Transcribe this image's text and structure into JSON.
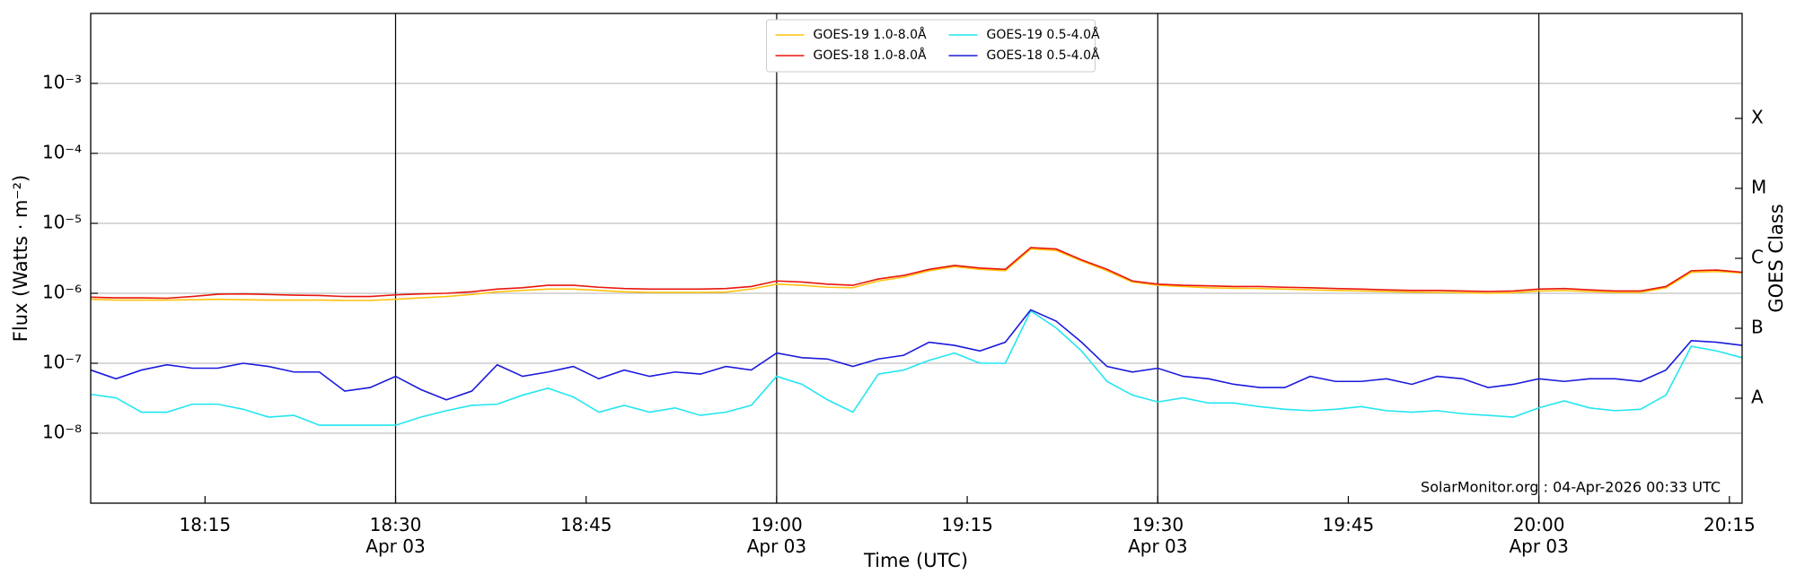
{
  "chart_data": {
    "type": "line",
    "log_y": true,
    "xlabel": "Time (UTC)",
    "ylabel": "Flux (Watts · m⁻²)",
    "y2label": "GOES Class",
    "annotation": "SolarMonitor.org : 04-Apr-2026 00:33 UTC",
    "legend": "upper center",
    "ygrid": true,
    "xlim": [
      "18:06",
      "20:16"
    ],
    "xticks": [
      {
        "value": "18:15",
        "label": "18:15"
      },
      {
        "value": "18:30",
        "label": "18:30",
        "date": "Apr 03"
      },
      {
        "value": "18:45",
        "label": "18:45"
      },
      {
        "value": "19:00",
        "label": "19:00",
        "date": "Apr 03"
      },
      {
        "value": "19:15",
        "label": "19:15"
      },
      {
        "value": "19:30",
        "label": "19:30",
        "date": "Apr 03"
      },
      {
        "value": "19:45",
        "label": "19:45"
      },
      {
        "value": "20:00",
        "label": "20:00",
        "date": "Apr 03"
      },
      {
        "value": "20:15",
        "label": "20:15"
      }
    ],
    "ylim": [
      1e-09,
      0.01
    ],
    "yticks": [
      {
        "value": 1e-08,
        "label": "10⁻⁸"
      },
      {
        "value": 1e-07,
        "label": "10⁻⁷"
      },
      {
        "value": 1e-06,
        "label": "10⁻⁶"
      },
      {
        "value": 1e-05,
        "label": "10⁻⁵"
      },
      {
        "value": 0.0001,
        "label": "10⁻⁴"
      },
      {
        "value": 0.001,
        "label": "10⁻³"
      }
    ],
    "y2lim": [
      1e-09,
      0.01
    ],
    "y2ticks": [
      {
        "value": 3.16e-08,
        "label": "A"
      },
      {
        "value": 3.16e-07,
        "label": "B"
      },
      {
        "value": 3.16e-06,
        "label": "C"
      },
      {
        "value": 3.16e-05,
        "label": "M"
      },
      {
        "value": 0.000316,
        "label": "X"
      }
    ],
    "x": [
      "18:06",
      "18:08",
      "18:10",
      "18:12",
      "18:14",
      "18:16",
      "18:18",
      "18:20",
      "18:22",
      "18:24",
      "18:26",
      "18:28",
      "18:30",
      "18:32",
      "18:34",
      "18:36",
      "18:38",
      "18:40",
      "18:42",
      "18:44",
      "18:46",
      "18:48",
      "18:50",
      "18:52",
      "18:54",
      "18:56",
      "18:58",
      "19:00",
      "19:02",
      "19:04",
      "19:06",
      "19:08",
      "19:10",
      "19:12",
      "19:14",
      "19:16",
      "19:18",
      "19:20",
      "19:22",
      "19:24",
      "19:26",
      "19:28",
      "19:30",
      "19:32",
      "19:34",
      "19:36",
      "19:38",
      "19:40",
      "19:42",
      "19:44",
      "19:46",
      "19:48",
      "19:50",
      "19:52",
      "19:54",
      "19:56",
      "19:58",
      "20:00",
      "20:02",
      "20:04",
      "20:06",
      "20:08",
      "20:10",
      "20:12",
      "20:14",
      "20:16"
    ],
    "series": [
      {
        "name": "GOES-19 1.0-8.0Å",
        "color": "#ffc20e",
        "values": [
          8.2e-07,
          8e-07,
          8e-07,
          8e-07,
          8.1e-07,
          8.2e-07,
          8.1e-07,
          8e-07,
          8e-07,
          8e-07,
          7.9e-07,
          7.9e-07,
          8.2e-07,
          8.6e-07,
          9e-07,
          9.6e-07,
          1.05e-06,
          1.1e-06,
          1.15e-06,
          1.15e-06,
          1.1e-06,
          1.05e-06,
          1.03e-06,
          1.03e-06,
          1.03e-06,
          1.04e-06,
          1.15e-06,
          1.35e-06,
          1.3e-06,
          1.22e-06,
          1.2e-06,
          1.5e-06,
          1.7e-06,
          2.1e-06,
          2.4e-06,
          2.2e-06,
          2.1e-06,
          4.3e-06,
          4.1e-06,
          2.9e-06,
          2.1e-06,
          1.45e-06,
          1.3e-06,
          1.25e-06,
          1.2e-06,
          1.18e-06,
          1.17e-06,
          1.15e-06,
          1.12e-06,
          1.1e-06,
          1.08e-06,
          1.06e-06,
          1.04e-06,
          1.03e-06,
          1.02e-06,
          1e-06,
          1.02e-06,
          1.08e-06,
          1.1e-06,
          1.06e-06,
          1.03e-06,
          1.03e-06,
          1.2e-06,
          2e-06,
          2.05e-06,
          1.95e-06
        ]
      },
      {
        "name": "GOES-18 1.0-8.0Å",
        "color": "#e8160c",
        "values": [
          8.8e-07,
          8.6e-07,
          8.6e-07,
          8.5e-07,
          9e-07,
          9.7e-07,
          9.8e-07,
          9.6e-07,
          9.4e-07,
          9.3e-07,
          9e-07,
          9e-07,
          9.5e-07,
          9.8e-07,
          1e-06,
          1.05e-06,
          1.15e-06,
          1.2e-06,
          1.3e-06,
          1.3e-06,
          1.22e-06,
          1.17e-06,
          1.15e-06,
          1.15e-06,
          1.15e-06,
          1.17e-06,
          1.25e-06,
          1.5e-06,
          1.45e-06,
          1.35e-06,
          1.3e-06,
          1.6e-06,
          1.8e-06,
          2.2e-06,
          2.5e-06,
          2.3e-06,
          2.2e-06,
          4.5e-06,
          4.3e-06,
          3e-06,
          2.2e-06,
          1.5e-06,
          1.35e-06,
          1.3e-06,
          1.28e-06,
          1.25e-06,
          1.25e-06,
          1.22e-06,
          1.2e-06,
          1.17e-06,
          1.15e-06,
          1.12e-06,
          1.1e-06,
          1.1e-06,
          1.08e-06,
          1.06e-06,
          1.08e-06,
          1.15e-06,
          1.17e-06,
          1.12e-06,
          1.08e-06,
          1.08e-06,
          1.25e-06,
          2.1e-06,
          2.15e-06,
          2e-06
        ]
      },
      {
        "name": "GOES-19 0.5-4.0Å",
        "color": "#22e6f0",
        "values": [
          3.6e-08,
          3.2e-08,
          2e-08,
          2e-08,
          2.6e-08,
          2.6e-08,
          2.2e-08,
          1.7e-08,
          1.8e-08,
          1.3e-08,
          1.3e-08,
          1.3e-08,
          1.3e-08,
          1.7e-08,
          2.1e-08,
          2.5e-08,
          2.6e-08,
          3.5e-08,
          4.4e-08,
          3.3e-08,
          2e-08,
          2.5e-08,
          2e-08,
          2.3e-08,
          1.8e-08,
          2e-08,
          2.5e-08,
          6.5e-08,
          5e-08,
          3e-08,
          2e-08,
          7e-08,
          8e-08,
          1.1e-07,
          1.4e-07,
          1e-07,
          1e-07,
          5.6e-07,
          3.2e-07,
          1.5e-07,
          5.5e-08,
          3.5e-08,
          2.8e-08,
          3.2e-08,
          2.7e-08,
          2.7e-08,
          2.4e-08,
          2.2e-08,
          2.1e-08,
          2.2e-08,
          2.4e-08,
          2.1e-08,
          2e-08,
          2.1e-08,
          1.9e-08,
          1.8e-08,
          1.7e-08,
          2.3e-08,
          2.9e-08,
          2.3e-08,
          2.1e-08,
          2.2e-08,
          3.5e-08,
          1.75e-07,
          1.5e-07,
          1.2e-07
        ]
      },
      {
        "name": "GOES-18 0.5-4.0Å",
        "color": "#1a1adc",
        "values": [
          8e-08,
          6e-08,
          8e-08,
          9.5e-08,
          8.5e-08,
          8.5e-08,
          1e-07,
          9e-08,
          7.5e-08,
          7.5e-08,
          4e-08,
          4.5e-08,
          6.5e-08,
          4.2e-08,
          3e-08,
          4e-08,
          9.5e-08,
          6.5e-08,
          7.5e-08,
          9e-08,
          6e-08,
          8e-08,
          6.5e-08,
          7.5e-08,
          7e-08,
          9e-08,
          8e-08,
          1.4e-07,
          1.2e-07,
          1.15e-07,
          9e-08,
          1.15e-07,
          1.3e-07,
          2e-07,
          1.8e-07,
          1.5e-07,
          2e-07,
          5.8e-07,
          4e-07,
          2e-07,
          9e-08,
          7.5e-08,
          8.5e-08,
          6.5e-08,
          6e-08,
          5e-08,
          4.5e-08,
          4.5e-08,
          6.5e-08,
          5.5e-08,
          5.5e-08,
          6e-08,
          5e-08,
          6.5e-08,
          6e-08,
          4.5e-08,
          5e-08,
          6e-08,
          5.5e-08,
          6e-08,
          6e-08,
          5.5e-08,
          8e-08,
          2.1e-07,
          2e-07,
          1.8e-07
        ]
      }
    ]
  }
}
